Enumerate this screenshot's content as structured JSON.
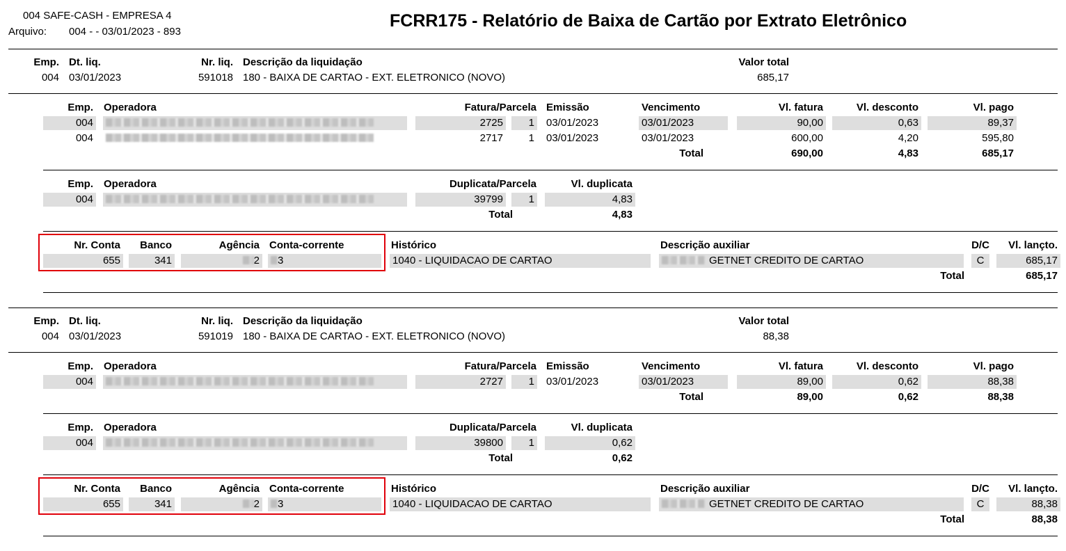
{
  "header": {
    "company": "004   SAFE-CASH - EMPRESA 4",
    "file_label": "Arquivo:",
    "file_value": "004 -  - 03/01/2023 - 893",
    "title": "FCRR175 - Relatório de Baixa de Cartão por Extrato Eletrônico"
  },
  "labels": {
    "liq": {
      "emp": "Emp.",
      "dt": "Dt. liq.",
      "nr": "Nr. liq.",
      "desc": "Descrição da liquidação",
      "valor": "Valor total"
    },
    "fat": {
      "emp": "Emp.",
      "operadora": "Operadora",
      "fatura_parcela": "Fatura/Parcela",
      "emissao": "Emissão",
      "vencimento": "Vencimento",
      "vl_fatura": "Vl. fatura",
      "vl_desconto": "Vl. desconto",
      "vl_pago": "Vl. pago",
      "total": "Total"
    },
    "dup": {
      "emp": "Emp.",
      "operadora": "Operadora",
      "duplicata_parcela": "Duplicata/Parcela",
      "vl_duplicata": "Vl. duplicata",
      "total": "Total"
    },
    "conta": {
      "nr_conta": "Nr. Conta",
      "banco": "Banco",
      "agencia": "Agência",
      "conta_corrente": "Conta-corrente",
      "historico": "Histórico",
      "desc_aux": "Descrição auxiliar",
      "dc": "D/C",
      "vl_lancto": "Vl. lançto.",
      "total": "Total"
    }
  },
  "blocks": [
    {
      "liq": {
        "emp": "004",
        "dt": "03/01/2023",
        "nr": "591018",
        "desc": "180 - BAIXA DE CARTAO - EXT. ELETRONICO (NOVO)",
        "valor": "685,17"
      },
      "faturas": [
        {
          "emp": "004",
          "fatura": "2725",
          "parcela": "1",
          "emissao": "03/01/2023",
          "vencimento": "03/01/2023",
          "vl_fatura": "90,00",
          "vl_desconto": "0,63",
          "vl_pago": "89,37"
        },
        {
          "emp": "004",
          "fatura": "2717",
          "parcela": "1",
          "emissao": "03/01/2023",
          "vencimento": "03/01/2023",
          "vl_fatura": "600,00",
          "vl_desconto": "4,20",
          "vl_pago": "595,80"
        }
      ],
      "fat_total": {
        "vl_fatura": "690,00",
        "vl_desconto": "4,83",
        "vl_pago": "685,17"
      },
      "duplicatas": [
        {
          "emp": "004",
          "duplicata": "39799",
          "parcela": "1",
          "vl_duplicata": "4,83"
        }
      ],
      "dup_total": "4,83",
      "contas": [
        {
          "nr_conta": "655",
          "banco": "341",
          "agencia": "2",
          "conta_corrente": "3",
          "historico": "1040 - LIQUIDACAO DE CARTAO",
          "desc_aux": "GETNET CREDITO DE CARTAO",
          "dc": "C",
          "vl_lancto": "685,17"
        }
      ],
      "conta_total": "685,17"
    },
    {
      "liq": {
        "emp": "004",
        "dt": "03/01/2023",
        "nr": "591019",
        "desc": "180 - BAIXA DE CARTAO - EXT. ELETRONICO (NOVO)",
        "valor": "88,38"
      },
      "faturas": [
        {
          "emp": "004",
          "fatura": "2727",
          "parcela": "1",
          "emissao": "03/01/2023",
          "vencimento": "03/01/2023",
          "vl_fatura": "89,00",
          "vl_desconto": "0,62",
          "vl_pago": "88,38"
        }
      ],
      "fat_total": {
        "vl_fatura": "89,00",
        "vl_desconto": "0,62",
        "vl_pago": "88,38"
      },
      "duplicatas": [
        {
          "emp": "004",
          "duplicata": "39800",
          "parcela": "1",
          "vl_duplicata": "0,62"
        }
      ],
      "dup_total": "0,62",
      "contas": [
        {
          "nr_conta": "655",
          "banco": "341",
          "agencia": "2",
          "conta_corrente": "3",
          "historico": "1040 - LIQUIDACAO DE CARTAO",
          "desc_aux": "GETNET CREDITO DE CARTAO",
          "dc": "C",
          "vl_lancto": "88,38"
        }
      ],
      "conta_total": "88,38"
    }
  ],
  "colors": {
    "highlight_box": "#e0000a",
    "row_shade": "#dedede"
  }
}
